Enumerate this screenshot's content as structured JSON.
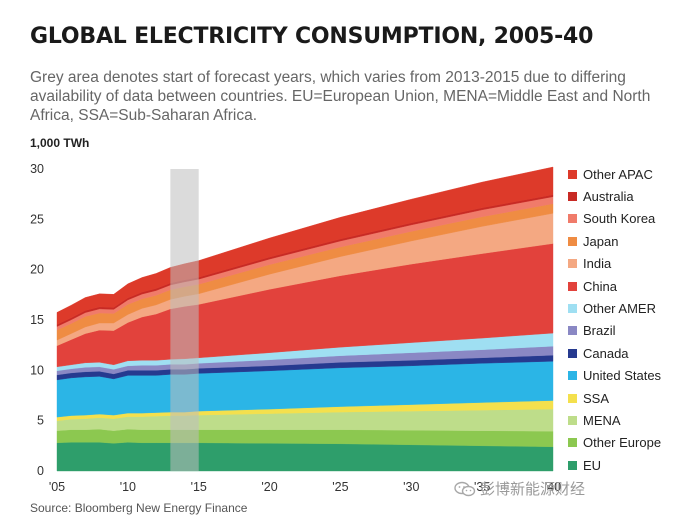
{
  "title": "GLOBAL ELECTRICITY CONSUMPTION, 2005-40",
  "subtitle": "Grey area denotes start of forecast years, which varies from 2013-2015 due to differing availability of data between countries. EU=European Union, MENA=Middle East and North Africa, SSA=Sub-Saharan Africa.",
  "source": "Source:  Bloomberg New Energy Finance",
  "watermark": "彭博新能源财经",
  "chart_data": {
    "type": "area",
    "stacked": true,
    "ylabel": "1,000 TWh",
    "xlabel": "",
    "xlim": [
      2005,
      2040
    ],
    "ylim": [
      0,
      30
    ],
    "yticks": [
      0,
      5,
      10,
      15,
      20,
      25,
      30
    ],
    "xticks": [
      2005,
      2010,
      2015,
      2020,
      2025,
      2030,
      2035,
      2040
    ],
    "xtick_labels": [
      "'05",
      "'10",
      "'15",
      "'20",
      "'25",
      "'30",
      "'35",
      "'40"
    ],
    "grid": false,
    "legend_position": "right",
    "shaded_region": [
      2013,
      2015
    ],
    "x": [
      2005,
      2006,
      2007,
      2008,
      2009,
      2010,
      2011,
      2012,
      2013,
      2014,
      2015,
      2020,
      2025,
      2030,
      2035,
      2040
    ],
    "series": [
      {
        "name": "EU",
        "color": "#2e9e6b",
        "values": [
          2.8,
          2.85,
          2.85,
          2.85,
          2.75,
          2.85,
          2.8,
          2.8,
          2.8,
          2.8,
          2.8,
          2.75,
          2.7,
          2.6,
          2.5,
          2.4
        ]
      },
      {
        "name": "Other Europe",
        "color": "#8cc850",
        "values": [
          1.2,
          1.25,
          1.25,
          1.3,
          1.25,
          1.3,
          1.3,
          1.3,
          1.3,
          1.3,
          1.3,
          1.35,
          1.4,
          1.45,
          1.5,
          1.55
        ]
      },
      {
        "name": "MENA",
        "color": "#bedd8a",
        "values": [
          1.0,
          1.05,
          1.1,
          1.15,
          1.2,
          1.25,
          1.3,
          1.35,
          1.4,
          1.4,
          1.45,
          1.6,
          1.75,
          1.9,
          2.05,
          2.2
        ]
      },
      {
        "name": "SSA",
        "color": "#f4e04d",
        "values": [
          0.35,
          0.35,
          0.35,
          0.35,
          0.35,
          0.35,
          0.35,
          0.35,
          0.35,
          0.35,
          0.4,
          0.45,
          0.55,
          0.65,
          0.75,
          0.85
        ]
      },
      {
        "name": "United States",
        "color": "#2bb5e6",
        "values": [
          3.7,
          3.75,
          3.8,
          3.75,
          3.6,
          3.75,
          3.75,
          3.7,
          3.75,
          3.75,
          3.75,
          3.8,
          3.85,
          3.85,
          3.9,
          3.9
        ]
      },
      {
        "name": "Canada",
        "color": "#263a8f",
        "values": [
          0.5,
          0.5,
          0.5,
          0.5,
          0.5,
          0.5,
          0.5,
          0.5,
          0.5,
          0.5,
          0.5,
          0.5,
          0.55,
          0.55,
          0.55,
          0.6
        ]
      },
      {
        "name": "Brazil",
        "color": "#8a88c4",
        "values": [
          0.4,
          0.4,
          0.45,
          0.45,
          0.45,
          0.45,
          0.5,
          0.5,
          0.5,
          0.5,
          0.5,
          0.6,
          0.65,
          0.75,
          0.8,
          0.9
        ]
      },
      {
        "name": "Other AMER",
        "color": "#9fdff2",
        "values": [
          0.4,
          0.4,
          0.45,
          0.45,
          0.45,
          0.5,
          0.5,
          0.5,
          0.5,
          0.55,
          0.55,
          0.7,
          0.85,
          1.0,
          1.15,
          1.3
        ]
      },
      {
        "name": "China",
        "color": "#e2423c",
        "values": [
          2.1,
          2.5,
          2.9,
          3.2,
          3.4,
          3.8,
          4.3,
          4.6,
          5.0,
          5.2,
          5.3,
          6.3,
          7.1,
          7.8,
          8.4,
          8.9
        ]
      },
      {
        "name": "India",
        "color": "#f4a882",
        "values": [
          0.55,
          0.6,
          0.65,
          0.7,
          0.75,
          0.8,
          0.85,
          0.9,
          0.95,
          1.0,
          1.05,
          1.5,
          1.9,
          2.3,
          2.7,
          3.0
        ]
      },
      {
        "name": "Japan",
        "color": "#ef8c43",
        "values": [
          1.0,
          1.0,
          1.05,
          1.0,
          0.95,
          1.0,
          0.95,
          0.95,
          0.95,
          0.95,
          0.95,
          0.95,
          0.95,
          0.95,
          0.95,
          0.95
        ]
      },
      {
        "name": "South Korea",
        "color": "#f07b6a",
        "values": [
          0.35,
          0.37,
          0.39,
          0.4,
          0.4,
          0.45,
          0.47,
          0.48,
          0.48,
          0.48,
          0.5,
          0.55,
          0.6,
          0.65,
          0.7,
          0.7
        ]
      },
      {
        "name": "Australia",
        "color": "#c82a24",
        "values": [
          0.2,
          0.2,
          0.2,
          0.2,
          0.2,
          0.2,
          0.2,
          0.2,
          0.2,
          0.2,
          0.2,
          0.2,
          0.2,
          0.2,
          0.2,
          0.2
        ]
      },
      {
        "name": "Other APAC",
        "color": "#dd3a2a",
        "values": [
          1.2,
          1.25,
          1.3,
          1.3,
          1.3,
          1.4,
          1.45,
          1.5,
          1.55,
          1.6,
          1.65,
          1.9,
          2.15,
          2.35,
          2.55,
          2.75
        ]
      }
    ]
  }
}
